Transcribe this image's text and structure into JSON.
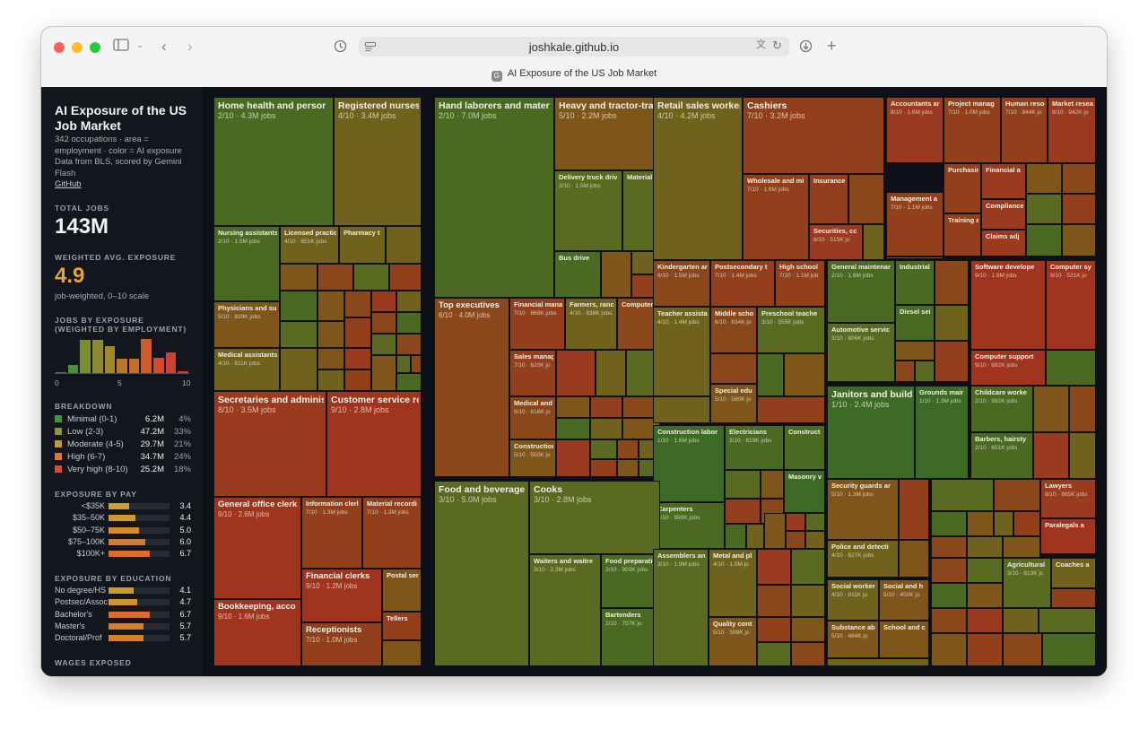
{
  "browser": {
    "url": "joshkale.github.io",
    "tab_title": "AI Exposure of the US Job Market",
    "tab_favicon": "G"
  },
  "sidebar": {
    "title": "AI Exposure of the US Job Market",
    "desc1": "342 occupations · area =",
    "desc2": "employment · color = AI exposure",
    "desc3": "Data from BLS, scored by Gemini",
    "desc4": "Flash",
    "github": "GitHub",
    "total_label": "TOTAL JOBS",
    "total_value": "143M",
    "avg_label": "WEIGHTED AVG. EXPOSURE",
    "avg_value": "4.9",
    "avg_note": "job-weighted, 0–10 scale",
    "hist_label1": "JOBS BY EXPOSURE",
    "hist_label2": "(WEIGHTED BY EMPLOYMENT)",
    "hist_ticks": [
      "0",
      "5",
      "10"
    ],
    "hist_values": [
      0.2,
      2.8,
      12.0,
      12.0,
      9.6,
      5.2,
      5.0,
      12.2,
      5.6,
      7.3,
      0.5
    ],
    "hist_colors": [
      "#3f8f3a",
      "#4f8f33",
      "#7a8f2d",
      "#8f8a2b",
      "#a08828",
      "#b87a28",
      "#c46e2a",
      "#cc5c2c",
      "#d34a2e",
      "#d63d30",
      "#d83a32"
    ],
    "breakdown_label": "BREAKDOWN",
    "breakdown": [
      {
        "name": "Minimal (0-1)",
        "value": "6.2M",
        "pct": "4%",
        "color": "#3a9a3a"
      },
      {
        "name": "Low (2-3)",
        "value": "47.2M",
        "pct": "33%",
        "color": "#8a9a2e"
      },
      {
        "name": "Moderate (4-5)",
        "value": "29.7M",
        "pct": "21%",
        "color": "#c89a2c"
      },
      {
        "name": "High (6-7)",
        "value": "34.7M",
        "pct": "24%",
        "color": "#e07a2a"
      },
      {
        "name": "Very high (8-10)",
        "value": "25.2M",
        "pct": "18%",
        "color": "#e04a30"
      }
    ],
    "pay_label": "EXPOSURE BY PAY",
    "pay": [
      {
        "label": "<$35K",
        "value": "3.4",
        "level": 0.34,
        "color": "#c9a02e"
      },
      {
        "label": "$35–50K",
        "value": "4.4",
        "level": 0.44,
        "color": "#cc9a2c"
      },
      {
        "label": "$50–75K",
        "value": "5.0",
        "level": 0.5,
        "color": "#d38d2c"
      },
      {
        "label": "$75–100K",
        "value": "6.0",
        "level": 0.6,
        "color": "#d87a2a"
      },
      {
        "label": "$100K+",
        "value": "6.7",
        "level": 0.67,
        "color": "#dc6e2a"
      }
    ],
    "edu_label": "EXPOSURE BY EDUCATION",
    "edu": [
      {
        "label": "No degree/HS",
        "value": "4.1",
        "level": 0.41,
        "color": "#cc9a2c"
      },
      {
        "label": "Postsec/Assoc",
        "value": "4.7",
        "level": 0.47,
        "color": "#cf922c"
      },
      {
        "label": "Bachelor's",
        "value": "6.7",
        "level": 0.67,
        "color": "#dc6e2a"
      },
      {
        "label": "Master's",
        "value": "5.7",
        "level": 0.57,
        "color": "#d67e2a"
      },
      {
        "label": "Doctoral/Prof",
        "value": "5.7",
        "level": 0.57,
        "color": "#d67e2a"
      }
    ],
    "wages_label": "WAGES EXPOSED"
  },
  "treemap": {
    "cells": [
      {
        "name": "Home health and persor",
        "stat": "2/10 · 4.3M jobs",
        "score": 2,
        "size": "l"
      },
      {
        "name": "Registered nurses",
        "stat": "4/10 · 3.4M jobs",
        "score": 4,
        "size": "l"
      },
      {
        "name": "Nursing assistants",
        "stat": "2/10 · 1.5M jobs",
        "score": 2,
        "size": "s"
      },
      {
        "name": "Licensed practic",
        "stat": "4/10 · 651K jobs",
        "score": 4,
        "size": "s"
      },
      {
        "name": "Pharmacy t",
        "stat": "",
        "score": 4,
        "size": "s"
      },
      {
        "name": "Physicians and su",
        "stat": "5/10 · 839K jobs",
        "score": 5,
        "size": "s"
      },
      {
        "name": "Medical assistants",
        "stat": "4/10 · 811K jobs",
        "score": 4,
        "size": "s"
      },
      {
        "name": "Hand laborers and mater",
        "stat": "2/10 · 7.0M jobs",
        "score": 2,
        "size": "l"
      },
      {
        "name": "Heavy and tractor-tra",
        "stat": "5/10 · 2.2M jobs",
        "score": 5,
        "size": "l"
      },
      {
        "name": "Delivery truck driv",
        "stat": "3/10 · 1.5M jobs",
        "score": 3,
        "size": "s"
      },
      {
        "name": "Material r",
        "stat": "",
        "score": 3,
        "size": "s"
      },
      {
        "name": "Bus drive",
        "stat": "",
        "score": 2,
        "size": "s"
      },
      {
        "name": "Retail sales workers",
        "stat": "4/10 · 4.2M jobs",
        "score": 4,
        "size": "l"
      },
      {
        "name": "Cashiers",
        "stat": "7/10 · 3.2M jobs",
        "score": 7,
        "size": "l"
      },
      {
        "name": "Wholesale and mi",
        "stat": "7/10 · 1.6M jobs",
        "score": 7,
        "size": "s"
      },
      {
        "name": "Insurance",
        "stat": "",
        "score": 7,
        "size": "s"
      },
      {
        "name": "Securities, cc",
        "stat": "8/10 · 515K jo",
        "score": 8,
        "size": "s"
      },
      {
        "name": "Accountants ar",
        "stat": "8/10 · 1.6M jobs",
        "score": 8,
        "size": "s"
      },
      {
        "name": "Project manag",
        "stat": "7/10 · 1.0M jobs",
        "score": 7,
        "size": "s"
      },
      {
        "name": "Human resou",
        "stat": "7/10 · 944K jo",
        "score": 7,
        "size": "s"
      },
      {
        "name": "Market resea",
        "stat": "8/10 · 942K jo",
        "score": 8,
        "size": "s"
      },
      {
        "name": "Purchasir",
        "stat": "",
        "score": 7,
        "size": "s"
      },
      {
        "name": "Financial a",
        "stat": "",
        "score": 8,
        "size": "s"
      },
      {
        "name": "Management a",
        "stat": "7/10 · 1.1M jobs",
        "score": 7,
        "size": "s"
      },
      {
        "name": "Compliance",
        "stat": "",
        "score": 8,
        "size": "s"
      },
      {
        "name": "Training a",
        "stat": "",
        "score": 7,
        "size": "s"
      },
      {
        "name": "Claims adj",
        "stat": "",
        "score": 8,
        "size": "s"
      },
      {
        "name": "Top executives",
        "stat": "6/10 · 4.0M jobs",
        "score": 6,
        "size": "m"
      },
      {
        "name": "Financial mana",
        "stat": "7/10 · 869K jobs",
        "score": 7,
        "size": "s"
      },
      {
        "name": "Farmers, ranc",
        "stat": "4/10 · 836K jobs",
        "score": 4,
        "size": "s"
      },
      {
        "name": "Computer",
        "stat": "",
        "score": 6,
        "size": "s"
      },
      {
        "name": "Sales manag",
        "stat": "7/10 · 620K jo",
        "score": 7,
        "size": "s"
      },
      {
        "name": "Medical and",
        "stat": "6/10 · 616K jo",
        "score": 6,
        "size": "s"
      },
      {
        "name": "Construction",
        "stat": "5/10 · 550K jo",
        "score": 5,
        "size": "s"
      },
      {
        "name": "Kindergarten an",
        "stat": "6/10 · 1.5M jobs",
        "score": 6,
        "size": "s"
      },
      {
        "name": "Postsecondary t",
        "stat": "7/10 · 1.4M jobs",
        "score": 7,
        "size": "s"
      },
      {
        "name": "High school",
        "stat": "7/10 · 1.1M job",
        "score": 7,
        "size": "s"
      },
      {
        "name": "Teacher assistar",
        "stat": "4/10 · 1.4M jobs",
        "score": 4,
        "size": "s"
      },
      {
        "name": "Middle scho",
        "stat": "6/10 · 634K jo",
        "score": 6,
        "size": "s"
      },
      {
        "name": "Preschool teache",
        "stat": "3/10 · 555K jobs",
        "score": 3,
        "size": "s"
      },
      {
        "name": "Special edu",
        "stat": "5/10 · 580K jo",
        "score": 5,
        "size": "s"
      },
      {
        "name": "General maintenar",
        "stat": "2/10 · 1.6M jobs",
        "score": 2,
        "size": "s"
      },
      {
        "name": "Industrial",
        "stat": "",
        "score": 2,
        "size": "s"
      },
      {
        "name": "Diesel sei",
        "stat": "",
        "score": 2,
        "size": "s"
      },
      {
        "name": "Automotive servic",
        "stat": "3/10 · 806K jobs",
        "score": 3,
        "size": "s"
      },
      {
        "name": "Software develope",
        "stat": "9/10 · 1.9M jobs",
        "score": 9,
        "size": "s"
      },
      {
        "name": "Computer sy",
        "stat": "9/10 · 521K jo",
        "score": 9,
        "size": "s"
      },
      {
        "name": "Computer support",
        "stat": "9/10 · 882K jobs",
        "score": 9,
        "size": "s"
      },
      {
        "name": "Janitors and buildir",
        "stat": "1/10 · 2.4M jobs",
        "score": 1,
        "size": "l"
      },
      {
        "name": "Grounds mair",
        "stat": "1/10 · 1.3M jobs",
        "score": 1,
        "size": "s"
      },
      {
        "name": "Childcare worke",
        "stat": "2/10 · 992K jobs",
        "score": 2,
        "size": "s"
      },
      {
        "name": "Barbers, hairsty",
        "stat": "2/10 · 651K jobs",
        "score": 2,
        "size": "s"
      },
      {
        "name": "Construction labor",
        "stat": "1/10 · 1.6M jobs",
        "score": 1,
        "size": "s"
      },
      {
        "name": "Electricians",
        "stat": "2/10 · 819K jobs",
        "score": 2,
        "size": "s"
      },
      {
        "name": "Construct",
        "stat": "",
        "score": 2,
        "size": "s"
      },
      {
        "name": "Masonry v",
        "stat": "",
        "score": 1,
        "size": "s"
      },
      {
        "name": "Carpenters",
        "stat": "2/10 · 959K jobs",
        "score": 2,
        "size": "s"
      },
      {
        "name": "Security guards ar",
        "stat": "5/10 · 1.3M jobs",
        "score": 5,
        "size": "s"
      },
      {
        "name": "Police and detecti",
        "stat": "4/10 · 827K jobs",
        "score": 4,
        "size": "s"
      },
      {
        "name": "Lawyers",
        "stat": "8/10 · 865K jobs",
        "score": 8,
        "size": "s"
      },
      {
        "name": "Paralegals a",
        "stat": "",
        "score": 9,
        "size": "s"
      },
      {
        "name": "Agricultural",
        "stat": "3/10 · 813K jc",
        "score": 3,
        "size": "s"
      },
      {
        "name": "Coaches a",
        "stat": "",
        "score": 4,
        "size": "s"
      },
      {
        "name": "Social worker",
        "stat": "4/10 · 811K jo",
        "score": 4,
        "size": "s"
      },
      {
        "name": "Social and h",
        "stat": "5/10 · 450K jo",
        "score": 5,
        "size": "s"
      },
      {
        "name": "School and c",
        "stat": "",
        "score": 5,
        "size": "s"
      },
      {
        "name": "Substance ab",
        "stat": "5/10 · 484K jo",
        "score": 5,
        "size": "s"
      },
      {
        "name": "Secretaries and adminis",
        "stat": "8/10 · 3.5M jobs",
        "score": 8,
        "size": "l"
      },
      {
        "name": "Customer service re",
        "stat": "9/10 · 2.8M jobs",
        "score": 9,
        "size": "l"
      },
      {
        "name": "General office clerk",
        "stat": "9/10 · 2.6M jobs",
        "score": 9,
        "size": "m"
      },
      {
        "name": "Information clerl",
        "stat": "7/10 · 1.3M jobs",
        "score": 7,
        "size": "s"
      },
      {
        "name": "Material recordi",
        "stat": "7/10 · 1.3M jobs",
        "score": 7,
        "size": "s"
      },
      {
        "name": "Financial clerks",
        "stat": "9/10 · 1.2M jobs",
        "score": 9,
        "size": "m"
      },
      {
        "name": "Postal ser",
        "stat": "",
        "score": 5,
        "size": "s"
      },
      {
        "name": "Tellers",
        "stat": "",
        "score": 7,
        "size": "s"
      },
      {
        "name": "Bookkeeping, acco",
        "stat": "9/10 · 1.6M jobs",
        "score": 9,
        "size": "m"
      },
      {
        "name": "Receptionists",
        "stat": "7/10 · 1.0M jobs",
        "score": 7,
        "size": "m"
      },
      {
        "name": "Food and beverage",
        "stat": "3/10 · 5.0M jobs",
        "score": 3,
        "size": "l"
      },
      {
        "name": "Cooks",
        "stat": "3/10 · 2.8M jobs",
        "score": 3,
        "size": "l"
      },
      {
        "name": "Waiters and waitre",
        "stat": "3/10 · 2.3M jobs",
        "score": 3,
        "size": "s"
      },
      {
        "name": "Food preparatic",
        "stat": "2/10 · 903K jobs",
        "score": 2,
        "size": "s"
      },
      {
        "name": "Bartenders",
        "stat": "2/10 · 757K jo",
        "score": 2,
        "size": "s"
      },
      {
        "name": "Assemblers an",
        "stat": "3/10 · 1.9M jobs",
        "score": 3,
        "size": "s"
      },
      {
        "name": "Metal and pl",
        "stat": "4/10 · 1.0M jo",
        "score": 4,
        "size": "s"
      },
      {
        "name": "Quality cont",
        "stat": "5/10 · 598K jo",
        "score": 5,
        "size": "s"
      }
    ],
    "filler_scores": [
      4,
      5,
      6,
      3,
      7,
      2,
      5,
      6,
      8,
      4,
      3,
      5,
      7,
      6,
      2,
      4,
      5,
      8,
      3,
      6,
      4,
      7,
      5,
      3,
      6,
      2,
      5,
      4,
      7,
      6
    ]
  }
}
